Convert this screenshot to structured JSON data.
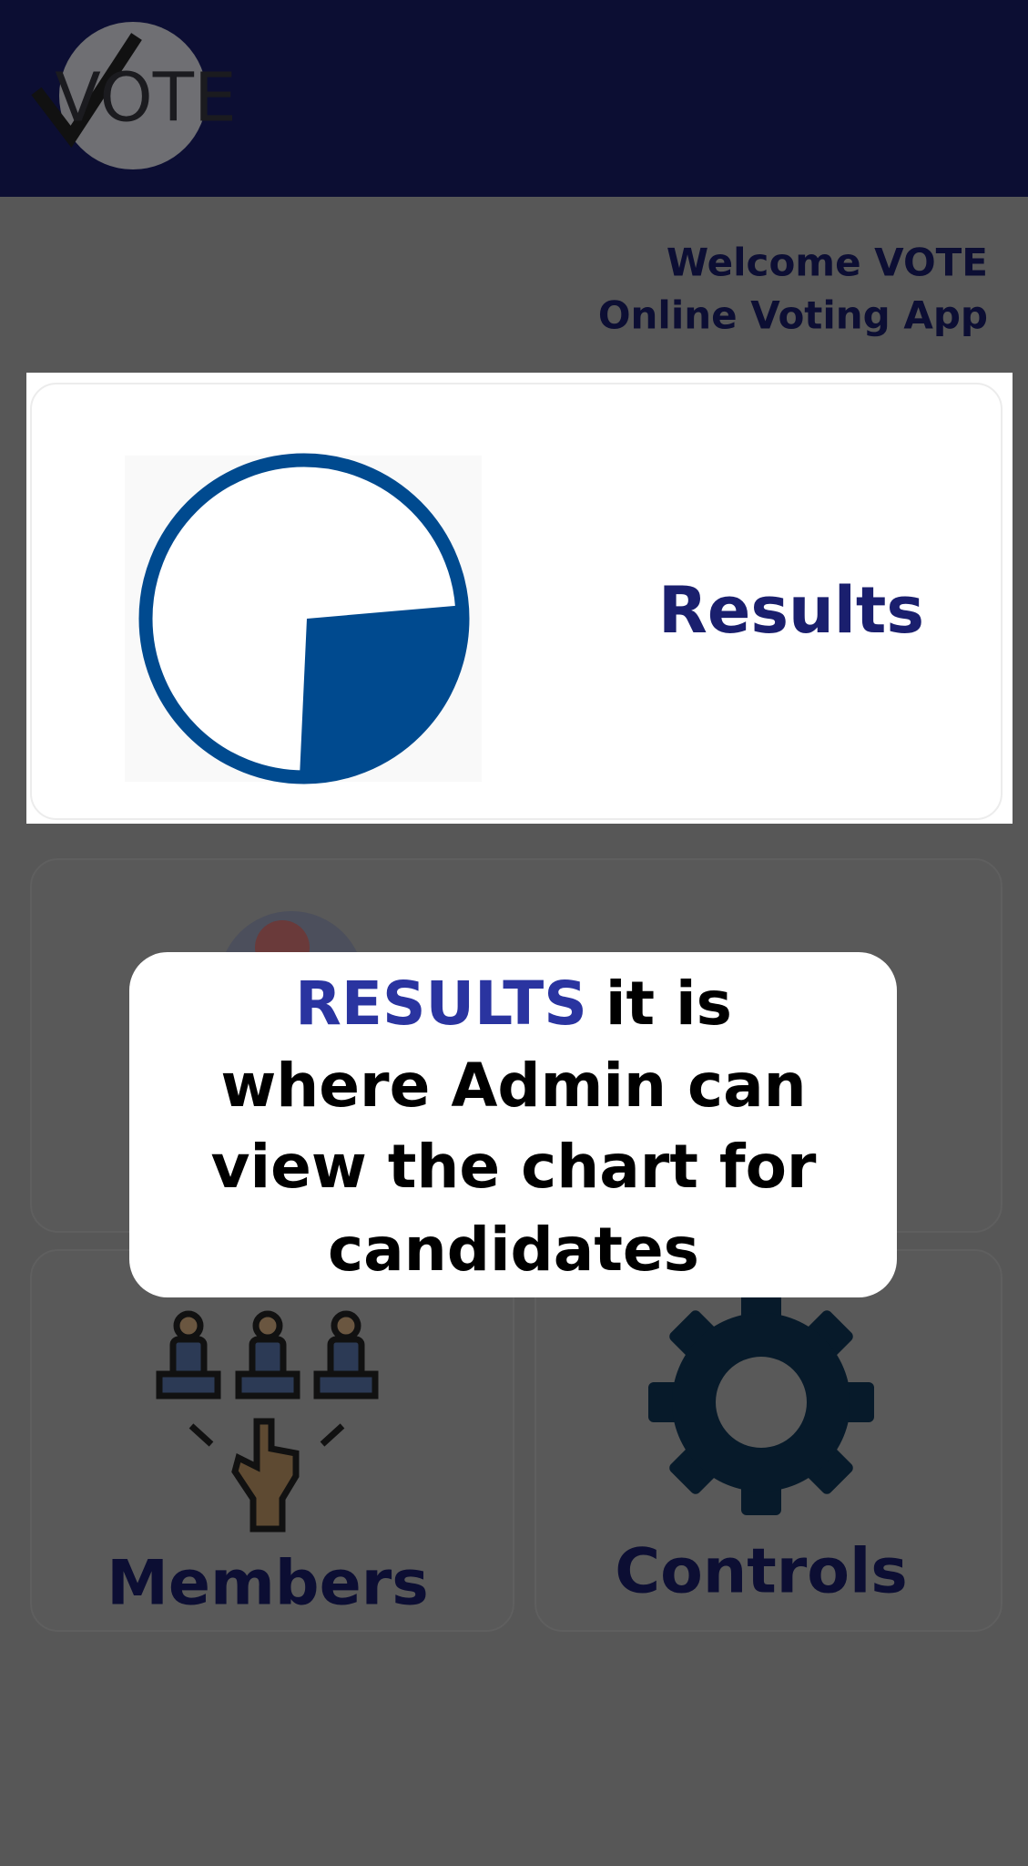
{
  "header": {
    "logo_text": "VOTE"
  },
  "welcome": {
    "lines": [
      "Welcome VOTE",
      "Online Voting App"
    ]
  },
  "cards": {
    "results": "Results",
    "members": "Members",
    "controls": "Controls"
  },
  "tooltip": {
    "highlight": "RESULTS",
    "first_line_rest": "it is",
    "lines": [
      "where Admin can",
      "view the chart for",
      "candidates"
    ]
  }
}
